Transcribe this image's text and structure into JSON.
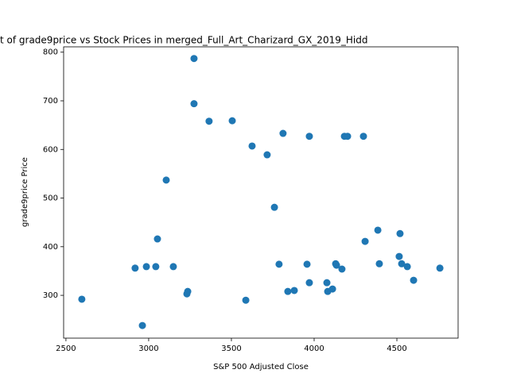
{
  "chart_data": {
    "type": "scatter",
    "title": "t of grade9price vs Stock Prices in merged_Full_Art_Charizard_GX_2019_Hidd",
    "x_label": "S&P 500 Adjusted Close",
    "y_label": "grade9price Price",
    "color": "#1f77b4",
    "x": [
      2596,
      2918,
      2962,
      2986,
      3043,
      3053,
      3106,
      3149,
      3231,
      3236,
      3274,
      3274,
      3365,
      3505,
      3587,
      3625,
      3716,
      3760,
      3788,
      3812,
      3841,
      3880,
      3957,
      3971,
      3971,
      4077,
      4082,
      4111,
      4130,
      4135,
      4168,
      4183,
      4202,
      4298,
      4308,
      4385,
      4394,
      4514,
      4519,
      4529,
      4563,
      4601,
      4760
    ],
    "values": [
      292,
      356,
      238,
      359,
      359,
      416,
      537,
      359,
      303,
      308,
      787,
      694,
      658,
      659,
      290,
      607,
      589,
      481,
      364,
      633,
      308,
      310,
      364,
      627,
      326,
      326,
      308,
      313,
      365,
      362,
      354,
      627,
      627,
      627,
      411,
      434,
      365,
      380,
      427,
      365,
      359,
      331,
      356
    ],
    "xlim": [
      2486,
      4870
    ],
    "ylim": [
      212,
      811
    ],
    "xticks": [
      2500,
      3000,
      3500,
      4000,
      4500
    ],
    "yticks": [
      300,
      400,
      500,
      600,
      700,
      800
    ]
  }
}
